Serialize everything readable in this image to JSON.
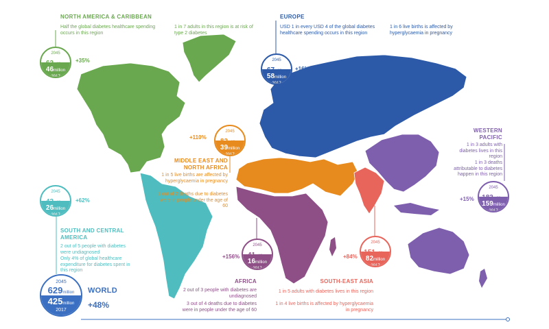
{
  "colors": {
    "north_america": "#6aa84f",
    "europe": "#2c5aa8",
    "mena": "#e88b1e",
    "south_america": "#4fbdbf",
    "africa": "#8e4f87",
    "south_east_asia": "#e8655c",
    "western_pacific": "#7e5fae",
    "world": "#3a6fc1"
  },
  "regions": {
    "north_america": {
      "title": "NORTH AMERICA & CARIBBEAN",
      "fact1": "Half the global diabetes healthcare spending occurs in this region",
      "fact2": "1 in 7 adults in this region is at risk of type 2 diabetes",
      "year_future": "2045",
      "value_future": "62",
      "unit_future": "million",
      "value_now": "46",
      "unit_now": "million",
      "year_now": "2017",
      "increase": "+35%"
    },
    "europe": {
      "title": "EUROPE",
      "fact1": "USD 1 in every USD 4 of the global diabetes healthcare spending occurs in this region",
      "fact2": "1 in 6 live births is affected by hyperglycaemia in pregnancy",
      "year_future": "2045",
      "value_future": "67",
      "unit_future": "million",
      "value_now": "58",
      "unit_now": "million",
      "year_now": "2017",
      "increase": "+16%"
    },
    "mena": {
      "title": "MIDDLE EAST AND NORTH AFRICA",
      "fact1": "1 in 5 live births are affected by hyperglycaemia in pregnancy",
      "fact2": "1 out of 2 deaths due to diabetes were in people under the age of 60",
      "year_future": "2045",
      "value_future": "82",
      "unit_future": "million",
      "value_now": "39",
      "unit_now": "million",
      "year_now": "2017",
      "increase": "+110%"
    },
    "south_america": {
      "title": "SOUTH AND CENTRAL AMERICA",
      "fact1": "2 out of 5 people with diabetes were undiagnosed",
      "fact2": "Only 4% of global healthcare expenditure for diabetes spent in this region",
      "year_future": "2045",
      "value_future": "42",
      "unit_future": "million",
      "value_now": "26",
      "unit_now": "million",
      "year_now": "2017",
      "increase": "+62%"
    },
    "africa": {
      "title": "AFRICA",
      "fact1": "2 out of 3 people with diabetes are undiagnosed",
      "fact2": "3 out of 4 deaths due to diabetes were in people under the age of 60",
      "year_future": "2045",
      "value_future": "41",
      "unit_future": "million",
      "value_now": "16",
      "unit_now": "million",
      "year_now": "2017",
      "increase": "+156%"
    },
    "south_east_asia": {
      "title": "SOUTH-EAST ASIA",
      "fact1": "1 in 5 adults with diabetes lives in this region",
      "fact2": "1 in 4 live births is affected by hyperglycaemia in pregnancy",
      "year_future": "2045",
      "value_future": "151",
      "unit_future": "million",
      "value_now": "82",
      "unit_now": "million",
      "year_now": "2017",
      "increase": "+84%"
    },
    "western_pacific": {
      "title": "WESTERN PACIFIC",
      "fact1": "1 in 3 adults with diabetes lives in this region",
      "fact2": "1 in 3 deaths attributable to diabetes happen in this region",
      "year_future": "2045",
      "value_future": "183",
      "unit_future": "million",
      "value_now": "159",
      "unit_now": "million",
      "year_now": "2017",
      "increase": "+15%"
    },
    "world": {
      "title": "WORLD",
      "year_future": "2045",
      "value_future": "629",
      "unit_future": "million",
      "value_now": "425",
      "unit_now": "million",
      "year_now": "2017",
      "increase": "+48%"
    }
  }
}
